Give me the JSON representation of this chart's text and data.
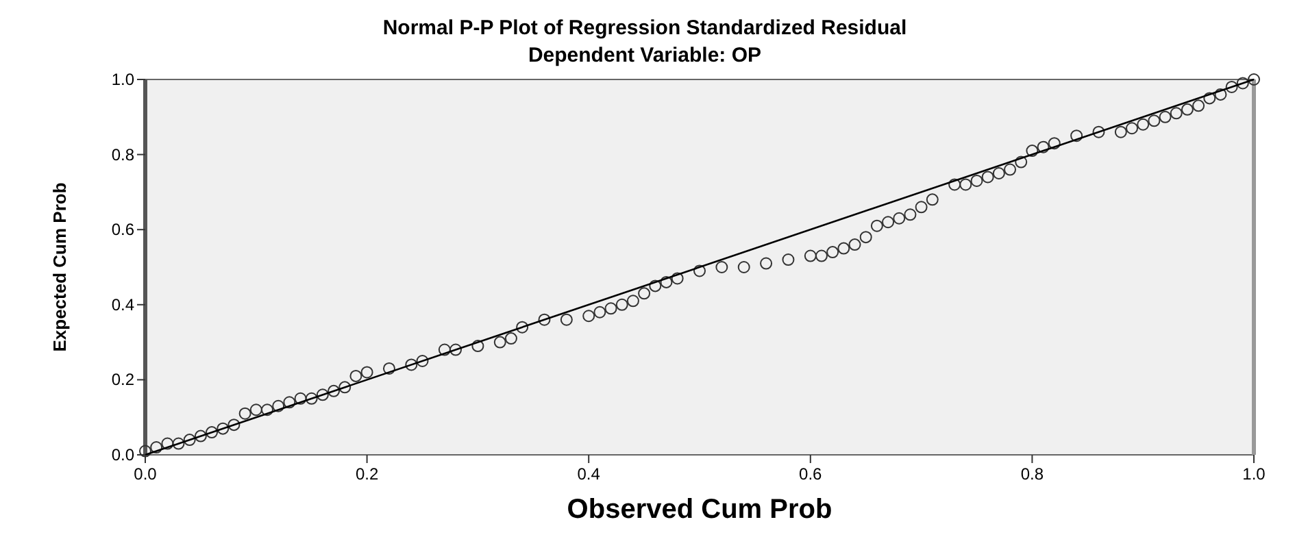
{
  "chart_data": {
    "type": "scatter",
    "title": "Normal P-P Plot of Regression Standardized Residual",
    "subtitle": "Dependent Variable: OP",
    "xlabel": "Observed Cum Prob",
    "ylabel": "Expected Cum Prob",
    "xlim": [
      0,
      1
    ],
    "ylim": [
      0,
      1
    ],
    "xticks": [
      {
        "value": 0,
        "label": "0.0"
      },
      {
        "value": 0.2,
        "label": "0.2"
      },
      {
        "value": 0.4,
        "label": "0.4"
      },
      {
        "value": 0.6,
        "label": "0.6"
      },
      {
        "value": 0.8,
        "label": "0.8"
      },
      {
        "value": 1,
        "label": "1.0"
      }
    ],
    "yticks": [
      {
        "value": 0,
        "label": "0.0"
      },
      {
        "value": 0.2,
        "label": "0.2"
      },
      {
        "value": 0.4,
        "label": "0.4"
      },
      {
        "value": 0.6,
        "label": "0.6"
      },
      {
        "value": 0.8,
        "label": "0.8"
      },
      {
        "value": 1,
        "label": "1.0"
      }
    ],
    "grid": false,
    "series": [
      {
        "color": "#333333",
        "marker": "circle",
        "x": [
          0.0,
          0.01,
          0.02,
          0.03,
          0.04,
          0.05,
          0.06,
          0.07,
          0.08,
          0.09,
          0.1,
          0.11,
          0.12,
          0.13,
          0.14,
          0.15,
          0.16,
          0.17,
          0.18,
          0.19,
          0.2,
          0.22,
          0.24,
          0.25,
          0.27,
          0.28,
          0.3,
          0.32,
          0.33,
          0.34,
          0.36,
          0.38,
          0.4,
          0.41,
          0.42,
          0.43,
          0.44,
          0.45,
          0.46,
          0.47,
          0.48,
          0.5,
          0.52,
          0.54,
          0.56,
          0.58,
          0.6,
          0.61,
          0.62,
          0.63,
          0.64,
          0.65,
          0.66,
          0.67,
          0.68,
          0.69,
          0.7,
          0.71,
          0.73,
          0.74,
          0.75,
          0.76,
          0.77,
          0.78,
          0.79,
          0.8,
          0.81,
          0.82,
          0.84,
          0.86,
          0.88,
          0.89,
          0.9,
          0.91,
          0.92,
          0.93,
          0.94,
          0.95,
          0.96,
          0.97,
          0.98,
          0.99,
          1.0
        ],
        "values": [
          0.01,
          0.02,
          0.03,
          0.03,
          0.04,
          0.05,
          0.06,
          0.07,
          0.08,
          0.11,
          0.12,
          0.12,
          0.13,
          0.14,
          0.15,
          0.15,
          0.16,
          0.17,
          0.18,
          0.21,
          0.22,
          0.23,
          0.24,
          0.25,
          0.28,
          0.28,
          0.29,
          0.3,
          0.31,
          0.34,
          0.36,
          0.36,
          0.37,
          0.38,
          0.39,
          0.4,
          0.41,
          0.43,
          0.45,
          0.46,
          0.47,
          0.49,
          0.5,
          0.5,
          0.51,
          0.52,
          0.53,
          0.53,
          0.54,
          0.55,
          0.56,
          0.58,
          0.61,
          0.62,
          0.63,
          0.64,
          0.66,
          0.68,
          0.72,
          0.72,
          0.73,
          0.74,
          0.75,
          0.76,
          0.78,
          0.81,
          0.82,
          0.83,
          0.85,
          0.86,
          0.86,
          0.87,
          0.88,
          0.89,
          0.9,
          0.91,
          0.92,
          0.93,
          0.95,
          0.96,
          0.98,
          0.99,
          1.0
        ]
      },
      {
        "type": "line",
        "color": "#000000",
        "marker": "none",
        "line_style": "solid",
        "x": [
          0,
          1
        ],
        "values": [
          0,
          1
        ]
      }
    ]
  }
}
